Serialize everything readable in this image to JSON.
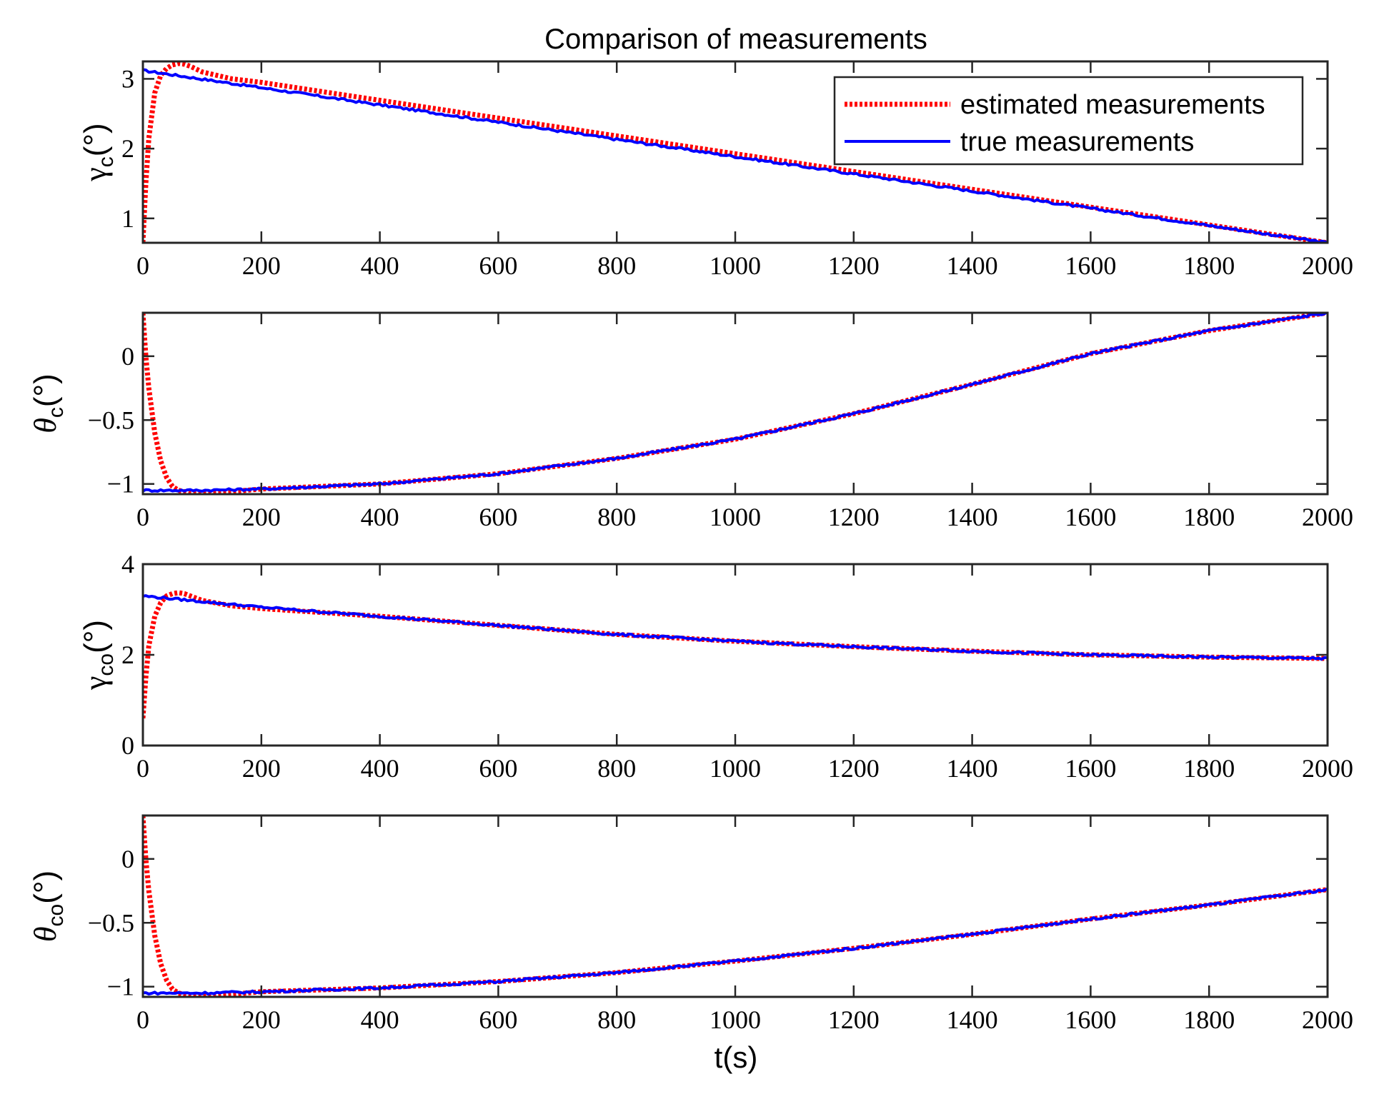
{
  "chart_data": {
    "type": "line",
    "title": "Comparison of measurements",
    "xlabel": "t(s)",
    "legend": {
      "placement": "top-right of first subplot",
      "entries": [
        "estimated measurements",
        "true measurements"
      ]
    },
    "colors": {
      "estimated": "#ff0000",
      "true": "#0000ff"
    },
    "x_ticks": [
      0,
      200,
      400,
      600,
      800,
      1000,
      1200,
      1400,
      1600,
      1800,
      2000
    ],
    "xlim": [
      0,
      2000
    ],
    "subplots": [
      {
        "ylabel_symbol": "γ",
        "ylabel_sub": "c",
        "ylabel_unit": "(°)",
        "ylabel_symbol_style": "normal",
        "ylim": [
          0.65,
          3.25
        ],
        "y_ticks": [
          1,
          2,
          3
        ],
        "y_tick_labels": [
          "1",
          "2",
          "3"
        ],
        "series": [
          {
            "name": "true measurements",
            "style": "solid",
            "x": [
              0,
              2000
            ],
            "y": [
              3.12,
              0.65
            ]
          },
          {
            "name": "estimated measurements",
            "style": "dotted",
            "x": [
              0,
              5,
              10,
              20,
              30,
              40,
              50,
              60,
              70,
              80,
              100,
              150,
              200,
              300,
              2000
            ],
            "y": [
              0.65,
              1.5,
              2.15,
              2.8,
              3.05,
              3.15,
              3.2,
              3.22,
              3.21,
              3.18,
              3.1,
              3.0,
              2.95,
              2.82,
              0.65
            ]
          }
        ]
      },
      {
        "ylabel_symbol": "θ",
        "ylabel_sub": "c",
        "ylabel_unit": "(°)",
        "ylabel_symbol_style": "italic",
        "ylim": [
          -1.08,
          0.34
        ],
        "y_ticks": [
          -1,
          -0.5,
          0
        ],
        "y_tick_labels": [
          "−1",
          "−0.5",
          "0"
        ],
        "series": [
          {
            "name": "true measurements",
            "style": "solid",
            "x": [
              0,
              100,
              200,
              400,
              600,
              800,
              1000,
              1200,
              1400,
              1600,
              1800,
              2000
            ],
            "y": [
              -1.05,
              -1.05,
              -1.04,
              -1.0,
              -0.92,
              -0.8,
              -0.65,
              -0.45,
              -0.22,
              0.02,
              0.2,
              0.34
            ]
          },
          {
            "name": "estimated measurements",
            "style": "dotted",
            "x": [
              0,
              5,
              10,
              20,
              30,
              40,
              50,
              60,
              80,
              100,
              120,
              150,
              200,
              400,
              600,
              800,
              1000,
              1200,
              1400,
              1600,
              1800,
              2000
            ],
            "y": [
              0.34,
              0.0,
              -0.25,
              -0.6,
              -0.82,
              -0.95,
              -1.02,
              -1.05,
              -1.07,
              -1.075,
              -1.07,
              -1.06,
              -1.04,
              -1.0,
              -0.92,
              -0.8,
              -0.65,
              -0.45,
              -0.22,
              0.02,
              0.2,
              0.34
            ]
          }
        ]
      },
      {
        "ylabel_symbol": "γ",
        "ylabel_sub": "co",
        "ylabel_unit": "(°)",
        "ylabel_symbol_style": "normal",
        "ylim": [
          0,
          4
        ],
        "y_ticks": [
          0,
          2,
          4
        ],
        "y_tick_labels": [
          "0",
          "2",
          "4"
        ],
        "series": [
          {
            "name": "true measurements",
            "style": "solid",
            "x": [
              0,
              200,
              400,
              600,
              800,
              1000,
              1200,
              1400,
              1600,
              1800,
              2000
            ],
            "y": [
              3.3,
              3.05,
              2.85,
              2.65,
              2.45,
              2.3,
              2.18,
              2.08,
              2.0,
              1.95,
              1.92
            ]
          },
          {
            "name": "estimated measurements",
            "style": "dotted",
            "x": [
              0,
              5,
              10,
              20,
              30,
              40,
              50,
              60,
              70,
              80,
              100,
              150,
              200,
              400,
              600,
              800,
              1000,
              1200,
              1400,
              1600,
              1800,
              2000
            ],
            "y": [
              0.6,
              1.5,
              2.2,
              2.85,
              3.15,
              3.3,
              3.35,
              3.37,
              3.35,
              3.3,
              3.2,
              3.08,
              3.02,
              2.85,
              2.65,
              2.45,
              2.3,
              2.18,
              2.08,
              2.0,
              1.95,
              1.92
            ]
          }
        ]
      },
      {
        "ylabel_symbol": "θ",
        "ylabel_sub": "co",
        "ylabel_unit": "(°)",
        "ylabel_symbol_style": "italic",
        "ylim": [
          -1.08,
          0.34
        ],
        "y_ticks": [
          -1,
          -0.5,
          0
        ],
        "y_tick_labels": [
          "−1",
          "−0.5",
          "0"
        ],
        "series": [
          {
            "name": "true measurements",
            "style": "solid",
            "x": [
              0,
              100,
              200,
              400,
              600,
              800,
              1000,
              1200,
              1400,
              1600,
              1800,
              2000
            ],
            "y": [
              -1.05,
              -1.05,
              -1.04,
              -1.01,
              -0.96,
              -0.89,
              -0.8,
              -0.7,
              -0.59,
              -0.47,
              -0.36,
              -0.24
            ]
          },
          {
            "name": "estimated measurements",
            "style": "dotted",
            "x": [
              0,
              5,
              10,
              20,
              30,
              40,
              50,
              60,
              80,
              100,
              120,
              150,
              200,
              400,
              600,
              800,
              1000,
              1200,
              1400,
              1600,
              1800,
              2000
            ],
            "y": [
              0.34,
              0.0,
              -0.25,
              -0.6,
              -0.82,
              -0.95,
              -1.02,
              -1.05,
              -1.07,
              -1.075,
              -1.07,
              -1.06,
              -1.04,
              -1.01,
              -0.96,
              -0.89,
              -0.8,
              -0.7,
              -0.59,
              -0.47,
              -0.36,
              -0.24
            ]
          }
        ]
      }
    ]
  }
}
